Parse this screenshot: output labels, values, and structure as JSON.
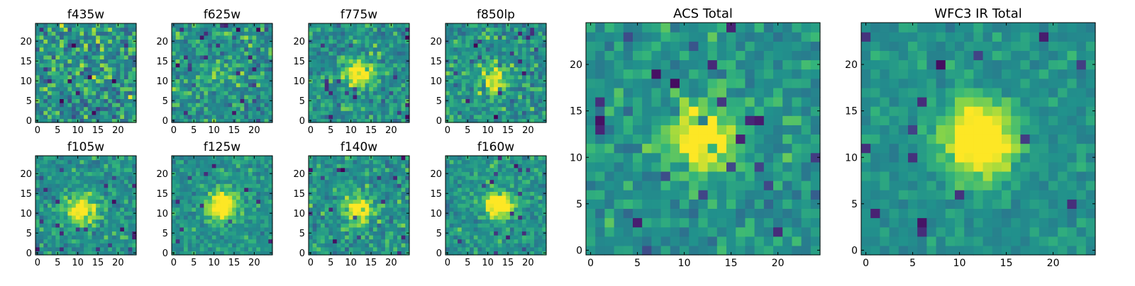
{
  "figure": {
    "panels": [
      {
        "id": "f435w",
        "title": "f435w",
        "xticks": [
          0,
          5,
          10,
          15,
          20
        ],
        "yticks": [
          0,
          5,
          10,
          15,
          20
        ]
      },
      {
        "id": "f625w",
        "title": "f625w",
        "xticks": [
          0,
          5,
          10,
          15,
          20
        ],
        "yticks": [
          0,
          5,
          10,
          15,
          20
        ]
      },
      {
        "id": "f775w",
        "title": "f775w",
        "xticks": [
          0,
          5,
          10,
          15,
          20
        ],
        "yticks": [
          0,
          5,
          10,
          15,
          20
        ]
      },
      {
        "id": "f850lp",
        "title": "f850lp",
        "xticks": [
          0,
          5,
          10,
          15,
          20
        ],
        "yticks": [
          0,
          5,
          10,
          15,
          20
        ]
      },
      {
        "id": "f105w",
        "title": "f105w",
        "xticks": [
          0,
          5,
          10,
          15,
          20
        ],
        "yticks": [
          0,
          5,
          10,
          15,
          20
        ]
      },
      {
        "id": "f125w",
        "title": "f125w",
        "xticks": [
          0,
          5,
          10,
          15,
          20
        ],
        "yticks": [
          0,
          5,
          10,
          15,
          20
        ]
      },
      {
        "id": "f140w",
        "title": "f140w",
        "xticks": [
          0,
          5,
          10,
          15,
          20
        ],
        "yticks": [
          0,
          5,
          10,
          15,
          20
        ]
      },
      {
        "id": "f160w",
        "title": "f160w",
        "xticks": [
          0,
          5,
          10,
          15,
          20
        ],
        "yticks": [
          0,
          5,
          10,
          15,
          20
        ]
      },
      {
        "id": "acs_total",
        "title": "ACS Total",
        "xticks": [
          0,
          5,
          10,
          15,
          20
        ],
        "yticks": [
          0,
          5,
          10,
          15,
          20
        ]
      },
      {
        "id": "wfc3_ir_total",
        "title": "WFC3 IR Total",
        "xticks": [
          0,
          5,
          10,
          15,
          20
        ],
        "yticks": [
          0,
          5,
          10,
          15,
          20
        ]
      }
    ]
  },
  "chart_data": [
    {
      "type": "heatmap",
      "title": "f435w",
      "grid": [
        25,
        25
      ],
      "xlim": [
        0,
        24
      ],
      "ylim": [
        0,
        24
      ],
      "colormap": "viridis",
      "source_center": null,
      "source_strength": 0.0,
      "noise_level": 0.75,
      "seed": 11
    },
    {
      "type": "heatmap",
      "title": "f625w",
      "grid": [
        25,
        25
      ],
      "xlim": [
        0,
        24
      ],
      "ylim": [
        0,
        24
      ],
      "colormap": "viridis",
      "source_center": [
        12,
        12
      ],
      "source_strength": 0.15,
      "noise_level": 0.6,
      "seed": 23
    },
    {
      "type": "heatmap",
      "title": "f775w",
      "grid": [
        25,
        25
      ],
      "xlim": [
        0,
        24
      ],
      "ylim": [
        0,
        24
      ],
      "colormap": "viridis",
      "source_center": [
        12,
        12
      ],
      "source_strength": 0.4,
      "noise_level": 0.55,
      "seed": 37
    },
    {
      "type": "heatmap",
      "title": "f850lp",
      "grid": [
        25,
        25
      ],
      "xlim": [
        0,
        24
      ],
      "ylim": [
        0,
        24
      ],
      "colormap": "viridis",
      "source_center": [
        12,
        11
      ],
      "source_strength": 0.35,
      "noise_level": 0.6,
      "seed": 41
    },
    {
      "type": "heatmap",
      "title": "f105w",
      "grid": [
        25,
        25
      ],
      "xlim": [
        0,
        24
      ],
      "ylim": [
        0,
        24
      ],
      "colormap": "viridis",
      "source_center": [
        11,
        11
      ],
      "source_strength": 0.45,
      "noise_level": 0.45,
      "seed": 53
    },
    {
      "type": "heatmap",
      "title": "f125w",
      "grid": [
        25,
        25
      ],
      "xlim": [
        0,
        24
      ],
      "ylim": [
        0,
        24
      ],
      "colormap": "viridis",
      "source_center": [
        12,
        12
      ],
      "source_strength": 0.55,
      "noise_level": 0.4,
      "seed": 61
    },
    {
      "type": "heatmap",
      "title": "f140w",
      "grid": [
        25,
        25
      ],
      "xlim": [
        0,
        24
      ],
      "ylim": [
        0,
        24
      ],
      "colormap": "viridis",
      "source_center": [
        12,
        11
      ],
      "source_strength": 0.45,
      "noise_level": 0.5,
      "seed": 71
    },
    {
      "type": "heatmap",
      "title": "f160w",
      "grid": [
        25,
        25
      ],
      "xlim": [
        0,
        24
      ],
      "ylim": [
        0,
        24
      ],
      "colormap": "viridis",
      "source_center": [
        13,
        12
      ],
      "source_strength": 0.5,
      "noise_level": 0.45,
      "seed": 83
    },
    {
      "type": "heatmap",
      "title": "ACS Total",
      "grid": [
        25,
        25
      ],
      "xlim": [
        0,
        24
      ],
      "ylim": [
        0,
        24
      ],
      "colormap": "viridis",
      "source_center": [
        12,
        12
      ],
      "source_strength": 0.55,
      "noise_level": 0.45,
      "seed": 97
    },
    {
      "type": "heatmap",
      "title": "WFC3 IR Total",
      "grid": [
        25,
        25
      ],
      "xlim": [
        0,
        24
      ],
      "ylim": [
        0,
        24
      ],
      "colormap": "viridis",
      "source_center": [
        12,
        12
      ],
      "source_strength": 0.65,
      "noise_level": 0.3,
      "seed": 101
    }
  ]
}
